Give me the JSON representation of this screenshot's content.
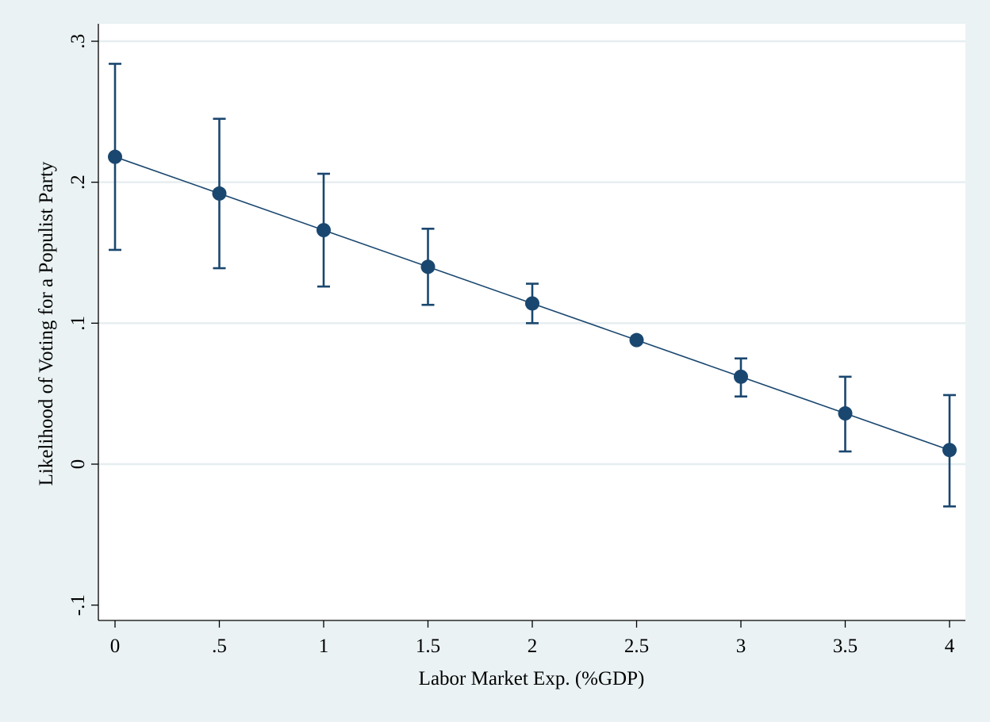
{
  "chart_data": {
    "type": "scatter",
    "title": "",
    "xlabel": "Labor Market Exp. (%GDP)",
    "ylabel": "Likelihood of Voting for a Populist Party",
    "xlim": [
      -0.05,
      4.07
    ],
    "ylim": [
      -0.11,
      0.31
    ],
    "x_ticks": [
      {
        "value": 0,
        "label": "0"
      },
      {
        "value": 0.5,
        "label": ".5"
      },
      {
        "value": 1,
        "label": "1"
      },
      {
        "value": 1.5,
        "label": "1.5"
      },
      {
        "value": 2,
        "label": "2"
      },
      {
        "value": 2.5,
        "label": "2.5"
      },
      {
        "value": 3,
        "label": "3"
      },
      {
        "value": 3.5,
        "label": "3.5"
      },
      {
        "value": 4,
        "label": "4"
      }
    ],
    "y_ticks": [
      {
        "value": -0.1,
        "label": "-.1"
      },
      {
        "value": 0,
        "label": "0"
      },
      {
        "value": 0.1,
        "label": ".1"
      },
      {
        "value": 0.2,
        "label": ".2"
      },
      {
        "value": 0.3,
        "label": ".3"
      }
    ],
    "grid": true,
    "legend": "none",
    "series": [
      {
        "x": [
          0,
          0.5,
          1,
          1.5,
          2,
          2.5,
          3,
          3.5,
          4
        ],
        "y": [
          0.218,
          0.192,
          0.166,
          0.14,
          0.114,
          0.088,
          0.062,
          0.036,
          0.01
        ],
        "lower": [
          0.152,
          0.139,
          0.126,
          0.113,
          0.1,
          0.088,
          0.048,
          0.009,
          -0.03
        ],
        "upper": [
          0.284,
          0.245,
          0.206,
          0.167,
          0.128,
          0.088,
          0.075,
          0.062,
          0.049
        ]
      }
    ],
    "colors": {
      "background": "#eaf2f3",
      "plot_area": "#ffffff",
      "gridline": "#e6eef0",
      "marker": "#1a476f",
      "line": "#1a476f",
      "axis": "#000000"
    }
  }
}
